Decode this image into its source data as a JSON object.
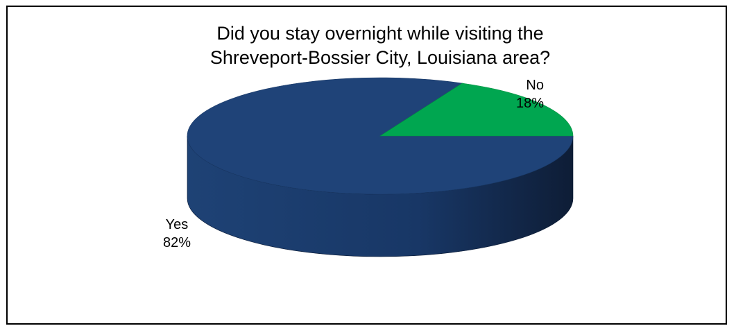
{
  "chart_data": {
    "type": "pie",
    "title_lines": [
      "Did you stay overnight while visiting the",
      "Shreveport-Bossier City, Louisiana area?"
    ],
    "slices": [
      {
        "name": "Yes",
        "value": 82,
        "label": "82%",
        "color": "#1F4378"
      },
      {
        "name": "No",
        "value": 18,
        "label": "18%",
        "color": "#00A650"
      }
    ],
    "style": "3d"
  }
}
